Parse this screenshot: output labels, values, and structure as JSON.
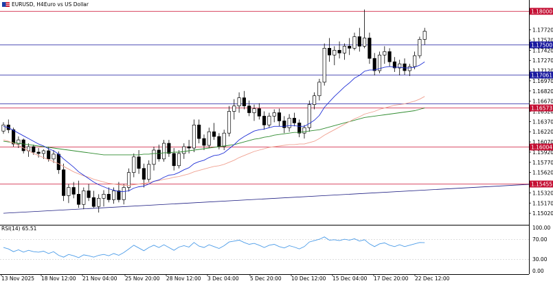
{
  "header": {
    "symbol_timeframe": "EURUSD, H4:",
    "description": "Euro vs US Dollar",
    "flag_icon": "eu-us-flag-icon"
  },
  "rsi": {
    "label": "RSI(14) 65.51",
    "levels": [
      "100.00",
      "70.00",
      "30.00",
      "0.00"
    ]
  },
  "colors": {
    "candle": "#000000",
    "ma_fast_red": "#e8231f",
    "ma_blue": "#1f2fd6",
    "ma_salmon": "#f0a090",
    "ma_green": "#2e8b2e",
    "trendline": "#1a1a80",
    "level_blue_line": "#1a1aa0",
    "level_red_line": "#cc1133",
    "rsi_line": "#4a9be8"
  },
  "chart_data": {
    "type": "candlestick",
    "title": "EURUSD, H4: Euro vs US Dollar",
    "ylim": [
      1.1488,
      1.1815
    ],
    "price_ticks": [
      "1.17720",
      "1.17570",
      "1.17420",
      "1.17270",
      "1.17120",
      "1.16970",
      "1.16820",
      "1.16670",
      "1.16520",
      "1.16370",
      "1.16220",
      "1.16070",
      "1.15920",
      "1.15770",
      "1.15620",
      "1.15470",
      "1.15320",
      "1.15170",
      "1.15020"
    ],
    "time_labels": [
      "13 Nov 2025",
      "18 Nov 12:00",
      "21 Nov 04:00",
      "25 Nov 20:00",
      "28 Nov 12:00",
      "3 Dec 04:00",
      "5 Dec 20:00",
      "10 Dec 12:00",
      "15 Dec 04:00",
      "17 Dec 20:00",
      "22 Dec 12:00"
    ],
    "levels": [
      {
        "label": "1.18000",
        "value": 1.18,
        "style": "red"
      },
      {
        "label": "1.17500",
        "value": 1.175,
        "style": "blue"
      },
      {
        "label": "1.17061",
        "value": 1.17061,
        "style": "blue"
      },
      {
        "label": "1.16573",
        "value": 1.16573,
        "style": "red"
      },
      {
        "label": "1.16004",
        "value": 1.16004,
        "style": "red"
      },
      {
        "label": "1.15455",
        "value": 1.15455,
        "style": "red"
      }
    ],
    "unlabeled_levels": [
      {
        "value": 1.1664,
        "style": "blue"
      }
    ],
    "trendline": {
      "from": [
        0,
        1.1502
      ],
      "to": [
        185,
        1.1577
      ]
    },
    "candles_ohlc": [
      [
        1.1623,
        1.1636,
        1.1619,
        1.1632
      ],
      [
        1.1632,
        1.164,
        1.162,
        1.1625
      ],
      [
        1.1625,
        1.1628,
        1.16,
        1.1604
      ],
      [
        1.1604,
        1.1615,
        1.1598,
        1.161
      ],
      [
        1.161,
        1.1612,
        1.159,
        1.1594
      ],
      [
        1.1594,
        1.1605,
        1.1585,
        1.16
      ],
      [
        1.16,
        1.1603,
        1.1588,
        1.1592
      ],
      [
        1.1592,
        1.1598,
        1.1584,
        1.159
      ],
      [
        1.159,
        1.1596,
        1.1582,
        1.1594
      ],
      [
        1.1594,
        1.16,
        1.1578,
        1.1582
      ],
      [
        1.1582,
        1.1595,
        1.1576,
        1.1589
      ],
      [
        1.1589,
        1.1593,
        1.156,
        1.1566
      ],
      [
        1.1566,
        1.1575,
        1.152,
        1.1528
      ],
      [
        1.1528,
        1.1545,
        1.1517,
        1.154
      ],
      [
        1.154,
        1.1548,
        1.1524,
        1.153
      ],
      [
        1.153,
        1.155,
        1.151,
        1.1515
      ],
      [
        1.1515,
        1.154,
        1.1508,
        1.1535
      ],
      [
        1.1535,
        1.1545,
        1.152,
        1.1525
      ],
      [
        1.1525,
        1.1535,
        1.151,
        1.1512
      ],
      [
        1.1512,
        1.153,
        1.1503,
        1.1524
      ],
      [
        1.1524,
        1.1536,
        1.1512,
        1.153
      ],
      [
        1.153,
        1.154,
        1.1518,
        1.1522
      ],
      [
        1.1522,
        1.154,
        1.1516,
        1.1535
      ],
      [
        1.1535,
        1.1548,
        1.1518,
        1.1522
      ],
      [
        1.1522,
        1.1545,
        1.1515,
        1.154
      ],
      [
        1.154,
        1.1568,
        1.1534,
        1.1562
      ],
      [
        1.1562,
        1.159,
        1.1555,
        1.1585
      ],
      [
        1.1585,
        1.1595,
        1.156,
        1.1568
      ],
      [
        1.1568,
        1.1575,
        1.154,
        1.1552
      ],
      [
        1.1552,
        1.158,
        1.1548,
        1.1574
      ],
      [
        1.1574,
        1.16,
        1.1565,
        1.1595
      ],
      [
        1.1595,
        1.1603,
        1.1578,
        1.1582
      ],
      [
        1.1582,
        1.161,
        1.1578,
        1.1605
      ],
      [
        1.1605,
        1.161,
        1.1585,
        1.159
      ],
      [
        1.159,
        1.1598,
        1.1565,
        1.1572
      ],
      [
        1.1572,
        1.1595,
        1.1568,
        1.159
      ],
      [
        1.159,
        1.1605,
        1.1582,
        1.16
      ],
      [
        1.16,
        1.161,
        1.159,
        1.1598
      ],
      [
        1.1598,
        1.164,
        1.1592,
        1.1632
      ],
      [
        1.1632,
        1.164,
        1.1605,
        1.1612
      ],
      [
        1.1612,
        1.1618,
        1.1595,
        1.1602
      ],
      [
        1.1602,
        1.1628,
        1.1598,
        1.1622
      ],
      [
        1.1622,
        1.1635,
        1.161,
        1.1615
      ],
      [
        1.1615,
        1.162,
        1.1596,
        1.16
      ],
      [
        1.16,
        1.1625,
        1.1595,
        1.162
      ],
      [
        1.162,
        1.166,
        1.1615,
        1.1652
      ],
      [
        1.1652,
        1.167,
        1.164,
        1.166
      ],
      [
        1.166,
        1.168,
        1.165,
        1.1672
      ],
      [
        1.1672,
        1.1682,
        1.1655,
        1.166
      ],
      [
        1.166,
        1.1668,
        1.1645,
        1.165
      ],
      [
        1.165,
        1.1662,
        1.1638,
        1.1656
      ],
      [
        1.1656,
        1.1664,
        1.164,
        1.1645
      ],
      [
        1.1645,
        1.1652,
        1.1625,
        1.1632
      ],
      [
        1.1632,
        1.165,
        1.1628,
        1.1645
      ],
      [
        1.1645,
        1.1655,
        1.1636,
        1.165
      ],
      [
        1.165,
        1.1656,
        1.163,
        1.1638
      ],
      [
        1.1638,
        1.1645,
        1.162,
        1.1628
      ],
      [
        1.1628,
        1.1648,
        1.1622,
        1.1642
      ],
      [
        1.1642,
        1.165,
        1.163,
        1.1635
      ],
      [
        1.1635,
        1.164,
        1.1614,
        1.162
      ],
      [
        1.162,
        1.1632,
        1.1612,
        1.1628
      ],
      [
        1.1628,
        1.1668,
        1.1622,
        1.1662
      ],
      [
        1.1662,
        1.168,
        1.1655,
        1.1675
      ],
      [
        1.1675,
        1.17,
        1.1668,
        1.1695
      ],
      [
        1.1695,
        1.1752,
        1.169,
        1.1745
      ],
      [
        1.1745,
        1.176,
        1.1725,
        1.1735
      ],
      [
        1.1735,
        1.1748,
        1.172,
        1.1742
      ],
      [
        1.1742,
        1.1755,
        1.173,
        1.1738
      ],
      [
        1.1738,
        1.1752,
        1.1728,
        1.1748
      ],
      [
        1.1748,
        1.176,
        1.1735,
        1.1745
      ],
      [
        1.1745,
        1.1768,
        1.1742,
        1.1762
      ],
      [
        1.1762,
        1.1775,
        1.174,
        1.1748
      ],
      [
        1.1748,
        1.1802,
        1.1745,
        1.176
      ],
      [
        1.176,
        1.1768,
        1.1722,
        1.173
      ],
      [
        1.173,
        1.1738,
        1.1705,
        1.1712
      ],
      [
        1.1712,
        1.174,
        1.1708,
        1.1735
      ],
      [
        1.1735,
        1.1748,
        1.1722,
        1.174
      ],
      [
        1.174,
        1.1745,
        1.1718,
        1.1725
      ],
      [
        1.1725,
        1.1732,
        1.171,
        1.1716
      ],
      [
        1.1716,
        1.1728,
        1.1705,
        1.1722
      ],
      [
        1.1722,
        1.173,
        1.1706,
        1.1712
      ],
      [
        1.1712,
        1.1722,
        1.1704,
        1.1718
      ],
      [
        1.1718,
        1.174,
        1.1714,
        1.1734
      ],
      [
        1.1734,
        1.1762,
        1.173,
        1.1758
      ],
      [
        1.1758,
        1.1775,
        1.175,
        1.177
      ]
    ],
    "ma_red": [
      1.1626,
      1.1624,
      1.1618,
      1.1612,
      1.1605,
      1.16,
      1.1596,
      1.1592,
      1.159,
      1.1587,
      1.1583,
      1.1576,
      1.1565,
      1.1556,
      1.1548,
      1.154,
      1.1536,
      1.1533,
      1.1529,
      1.1527,
      1.1526,
      1.1525,
      1.1526,
      1.1526,
      1.1528,
      1.1533,
      1.1542,
      1.1548,
      1.155,
      1.1555,
      1.1562,
      1.1566,
      1.1572,
      1.1576,
      1.1576,
      1.1579,
      1.1584,
      1.1588,
      1.1596,
      1.16,
      1.1601,
      1.1605,
      1.1607,
      1.1606,
      1.1609,
      1.1617,
      1.1625,
      1.1634,
      1.1639,
      1.1642,
      1.1645,
      1.1645,
      1.1643,
      1.1643,
      1.1644,
      1.1643,
      1.164,
      1.164,
      1.1639,
      1.1636,
      1.1634,
      1.164,
      1.1648,
      1.1658,
      1.1675,
      1.1687,
      1.1697,
      1.1705,
      1.1713,
      1.172,
      1.1727,
      1.1731,
      1.1737,
      1.1736,
      1.1732,
      1.1733,
      1.1734,
      1.1733,
      1.173,
      1.1728,
      1.1725,
      1.1724,
      1.1726,
      1.1732,
      1.174
    ],
    "ma_blue": [
      1.163,
      1.1628,
      1.1624,
      1.162,
      1.1616,
      1.1612,
      1.1608,
      1.1604,
      1.1601,
      1.1597,
      1.1594,
      1.1589,
      1.1582,
      1.1576,
      1.157,
      1.1563,
      1.1558,
      1.1553,
      1.1548,
      1.1544,
      1.1541,
      1.1538,
      1.1536,
      1.1534,
      1.1534,
      1.1535,
      1.1539,
      1.1541,
      1.1542,
      1.1545,
      1.1549,
      1.1551,
      1.1555,
      1.1558,
      1.1559,
      1.1562,
      1.1566,
      1.1569,
      1.1575,
      1.1578,
      1.158,
      1.1584,
      1.1587,
      1.1588,
      1.1591,
      1.1597,
      1.1603,
      1.161,
      1.1615,
      1.1619,
      1.1623,
      1.1625,
      1.1626,
      1.1628,
      1.163,
      1.163,
      1.163,
      1.1631,
      1.1631,
      1.163,
      1.163,
      1.1634,
      1.1639,
      1.1646,
      1.1658,
      1.1666,
      1.1674,
      1.1681,
      1.1688,
      1.1694,
      1.1701,
      1.1705,
      1.1711,
      1.1713,
      1.1713,
      1.1715,
      1.1717,
      1.1718,
      1.1717,
      1.1717,
      1.1716,
      1.1716,
      1.1717,
      1.172,
      1.1725
    ],
    "ma_salmon": [
      1.161,
      1.1608,
      1.1605,
      1.1602,
      1.1598,
      1.1594,
      1.159,
      1.1587,
      1.1584,
      1.1581,
      1.1578,
      1.1575,
      1.1571,
      1.1567,
      1.1563,
      1.156,
      1.1557,
      1.1555,
      1.1552,
      1.155,
      1.1548,
      1.1546,
      1.1545,
      1.1544,
      1.1543,
      1.1543,
      1.1544,
      1.1545,
      1.1546,
      1.1547,
      1.1549,
      1.155,
      1.1552,
      1.1553,
      1.1555,
      1.1556,
      1.1558,
      1.156,
      1.1563,
      1.1565,
      1.1567,
      1.1569,
      1.1571,
      1.1572,
      1.1574,
      1.1577,
      1.158,
      1.1584,
      1.1587,
      1.159,
      1.1593,
      1.1595,
      1.1597,
      1.1599,
      1.16,
      1.1601,
      1.1602,
      1.1603,
      1.1603,
      1.1604,
      1.1604,
      1.1606,
      1.1608,
      1.1612,
      1.1617,
      1.1621,
      1.1625,
      1.1629,
      1.1633,
      1.1637,
      1.1641,
      1.1644,
      1.1648,
      1.165,
      1.1652,
      1.1655,
      1.1657,
      1.1659,
      1.1661,
      1.1662,
      1.1663,
      1.1665,
      1.1667,
      1.167,
      1.1674
    ],
    "ma_green": [
      1.1608,
      1.1607,
      1.1606,
      1.1605,
      1.1604,
      1.1603,
      1.1602,
      1.1601,
      1.16,
      1.1599,
      1.1598,
      1.1597,
      1.1596,
      1.1595,
      1.1594,
      1.1593,
      1.1592,
      1.1591,
      1.159,
      1.1589,
      1.1588,
      1.1588,
      1.1588,
      1.1588,
      1.1588,
      1.1588,
      1.1588,
      1.1588,
      1.1589,
      1.1589,
      1.159,
      1.159,
      1.1591,
      1.1591,
      1.1592,
      1.1592,
      1.1593,
      1.1594,
      1.1595,
      1.1596,
      1.1597,
      1.1598,
      1.1599,
      1.16,
      1.1601,
      1.1602,
      1.1603,
      1.1605,
      1.1607,
      1.1609,
      1.1611,
      1.1612,
      1.1614,
      1.1615,
      1.1617,
      1.1618,
      1.1619,
      1.162,
      1.1621,
      1.1621,
      1.1622,
      1.1623,
      1.1624,
      1.1625,
      1.1627,
      1.1629,
      1.1631,
      1.1633,
      1.1635,
      1.1637,
      1.1639,
      1.1641,
      1.1643,
      1.1644,
      1.1645,
      1.1646,
      1.1647,
      1.1648,
      1.1649,
      1.165,
      1.1651,
      1.1652,
      1.1653,
      1.1655,
      1.1657
    ],
    "rsi_values": [
      55,
      52,
      46,
      50,
      45,
      49,
      46,
      45,
      47,
      42,
      46,
      38,
      34,
      40,
      37,
      33,
      39,
      37,
      34,
      38,
      40,
      37,
      42,
      38,
      44,
      52,
      60,
      54,
      48,
      55,
      60,
      55,
      61,
      55,
      49,
      56,
      59,
      56,
      66,
      58,
      55,
      61,
      57,
      53,
      59,
      67,
      69,
      71,
      66,
      62,
      64,
      60,
      55,
      60,
      62,
      57,
      54,
      59,
      56,
      52,
      57,
      67,
      70,
      73,
      78,
      71,
      72,
      70,
      73,
      71,
      74,
      69,
      72,
      63,
      57,
      63,
      65,
      60,
      57,
      61,
      57,
      60,
      63,
      66,
      65.51
    ]
  }
}
